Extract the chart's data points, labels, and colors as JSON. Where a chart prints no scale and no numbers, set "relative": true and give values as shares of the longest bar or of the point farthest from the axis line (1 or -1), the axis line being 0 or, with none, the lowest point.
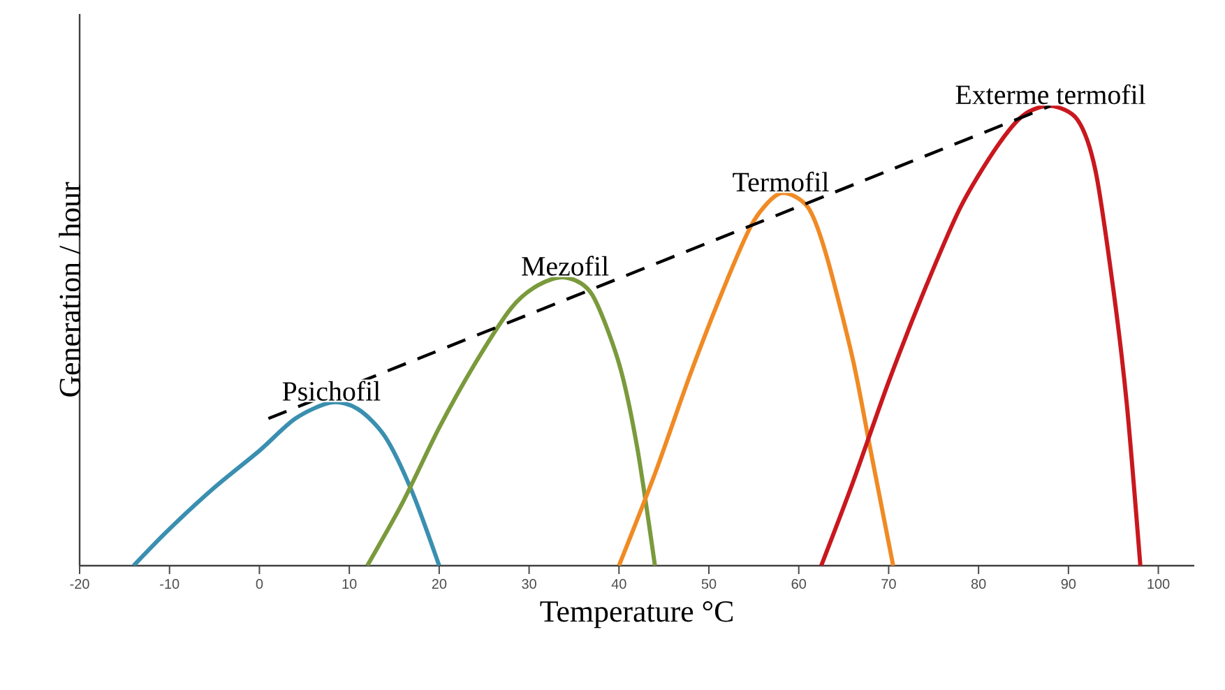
{
  "chart_data": {
    "type": "line",
    "relative": true,
    "xlabel": "Temperature °C",
    "ylabel": "Generation / hour",
    "xlim": [
      -20,
      104
    ],
    "xticks": [
      -20,
      -10,
      0,
      10,
      20,
      30,
      40,
      50,
      60,
      70,
      80,
      90,
      100
    ],
    "marker": "none",
    "series": [
      {
        "name": "Psichofil",
        "color": "#3a8fb0",
        "x": [
          -14,
          -10,
          -5,
          0,
          4,
          8,
          11,
          14,
          17,
          20
        ],
        "values": [
          0,
          0.08,
          0.17,
          0.25,
          0.32,
          0.355,
          0.34,
          0.28,
          0.16,
          0
        ]
      },
      {
        "name": "Mezofil",
        "color": "#7a9a3c",
        "x": [
          12,
          16,
          20,
          24,
          28,
          31,
          34,
          37,
          40,
          42,
          44
        ],
        "values": [
          0,
          0.14,
          0.3,
          0.44,
          0.56,
          0.61,
          0.627,
          0.59,
          0.44,
          0.26,
          0
        ]
      },
      {
        "name": "Termofil",
        "color": "#f08a24",
        "x": [
          40,
          44,
          48,
          52,
          55,
          58,
          61,
          63,
          66,
          68,
          70.5
        ],
        "values": [
          0,
          0.2,
          0.42,
          0.62,
          0.75,
          0.81,
          0.78,
          0.68,
          0.45,
          0.25,
          0
        ]
      },
      {
        "name": "Exterme termofil",
        "color": "#c8181e",
        "x": [
          62.5,
          66,
          70,
          74,
          78,
          82,
          85,
          88,
          91,
          93,
          95,
          96.5,
          98
        ],
        "values": [
          0,
          0.18,
          0.4,
          0.6,
          0.78,
          0.91,
          0.98,
          1,
          0.97,
          0.86,
          0.6,
          0.35,
          0
        ]
      },
      {
        "type": "line",
        "line_style": "dashed",
        "color": "#000000",
        "x": [
          1,
          88
        ],
        "values": [
          0.32,
          1
        ]
      }
    ]
  }
}
